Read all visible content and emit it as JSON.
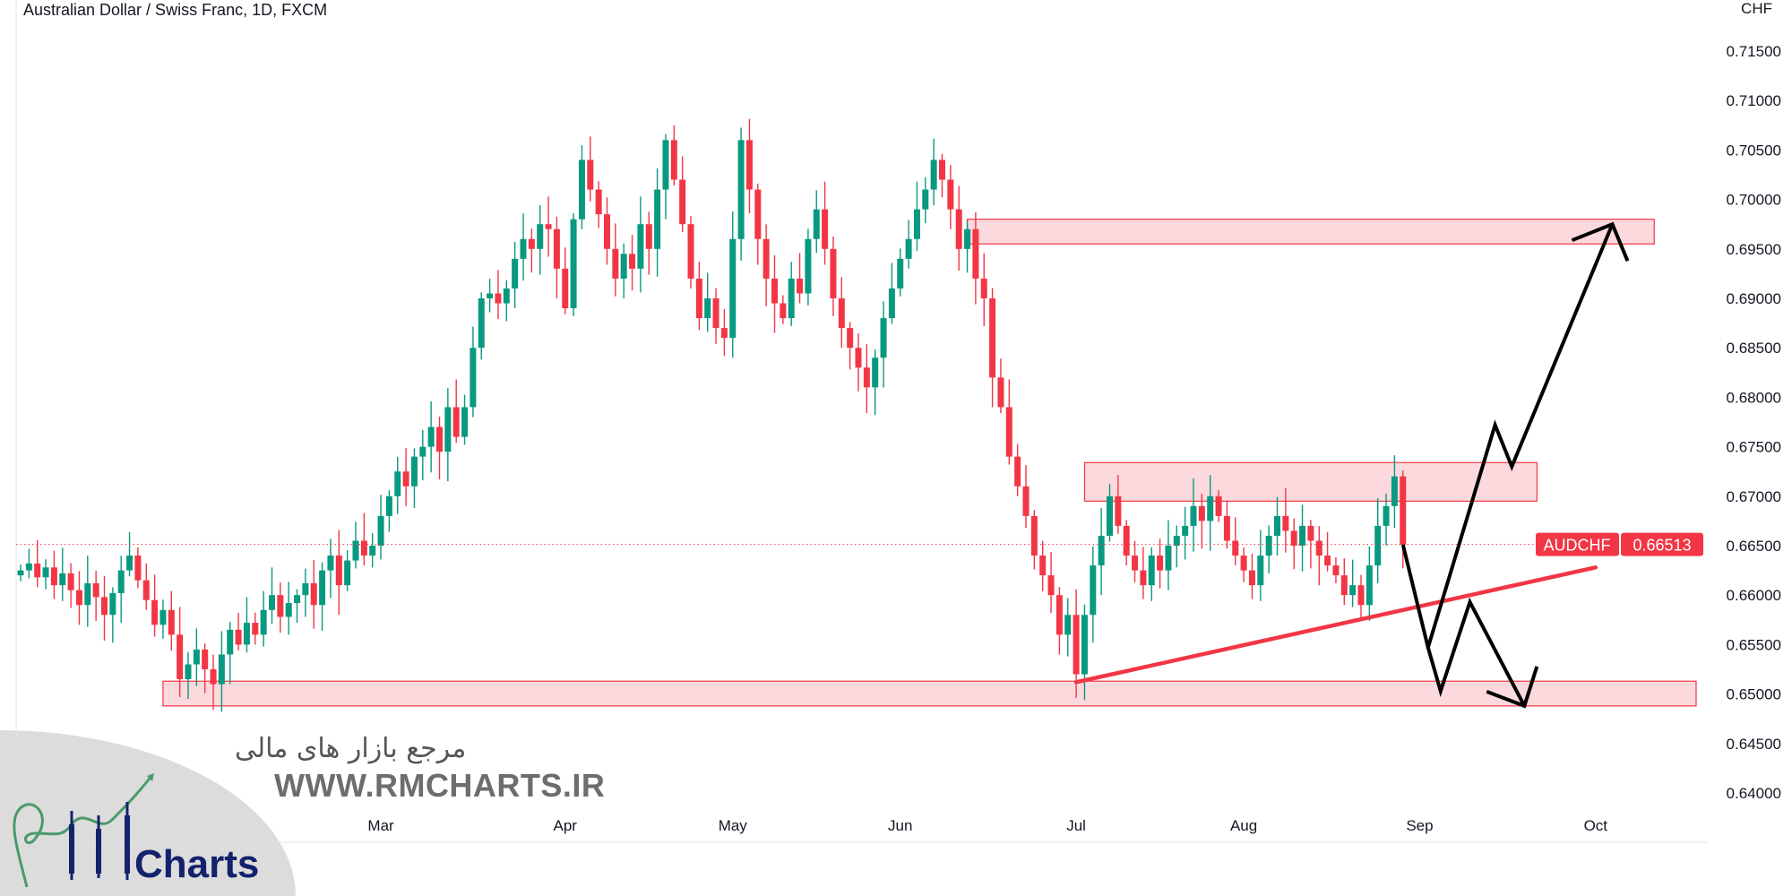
{
  "header": {
    "title": "Australian Dollar / Swiss Franc, 1D, FXCM",
    "currency": "CHF"
  },
  "watermark": {
    "persian": "مرجع بازار های مالی",
    "url": "WWW.RMCHARTS.IR",
    "brand": "Charts",
    "logo_text": "RM Charts"
  },
  "chart_data": {
    "type": "candlestick",
    "title": "Australian Dollar / Swiss Franc, 1D, FXCM",
    "symbol": "AUDCHF",
    "last_price": "0.66513",
    "ylabel": "CHF",
    "ylim": [
      0.6385,
      0.7165
    ],
    "yticks": [
      "0.71500",
      "0.71000",
      "0.70500",
      "0.70000",
      "0.69500",
      "0.69000",
      "0.68500",
      "0.68000",
      "0.67500",
      "0.67000",
      "0.66500",
      "0.66000",
      "0.65500",
      "0.65000",
      "0.64500",
      "0.64000"
    ],
    "xticks": [
      {
        "label": "Mar",
        "index": 43
      },
      {
        "label": "Apr",
        "index": 65
      },
      {
        "label": "May",
        "index": 85
      },
      {
        "label": "Jun",
        "index": 105
      },
      {
        "label": "Jul",
        "index": 126
      },
      {
        "label": "Aug",
        "index": 146
      },
      {
        "label": "Sep",
        "index": 167
      },
      {
        "label": "Oct",
        "index": 188
      }
    ],
    "first_open": 0.662,
    "closes": [
      0.6625,
      0.6632,
      0.6618,
      0.6628,
      0.661,
      0.6622,
      0.6605,
      0.659,
      0.6612,
      0.6598,
      0.658,
      0.6602,
      0.6625,
      0.664,
      0.6615,
      0.6595,
      0.657,
      0.6585,
      0.656,
      0.6515,
      0.653,
      0.6545,
      0.6525,
      0.651,
      0.654,
      0.6565,
      0.655,
      0.6572,
      0.656,
      0.6585,
      0.66,
      0.6578,
      0.6592,
      0.66,
      0.6612,
      0.659,
      0.6625,
      0.664,
      0.661,
      0.6635,
      0.6655,
      0.664,
      0.665,
      0.668,
      0.67,
      0.6725,
      0.671,
      0.674,
      0.675,
      0.677,
      0.6745,
      0.679,
      0.676,
      0.679,
      0.685,
      0.69,
      0.6905,
      0.6895,
      0.691,
      0.694,
      0.696,
      0.695,
      0.6975,
      0.697,
      0.693,
      0.689,
      0.698,
      0.704,
      0.701,
      0.6985,
      0.695,
      0.692,
      0.6945,
      0.693,
      0.6975,
      0.695,
      0.701,
      0.706,
      0.702,
      0.6975,
      0.692,
      0.688,
      0.69,
      0.687,
      0.686,
      0.696,
      0.706,
      0.701,
      0.696,
      0.692,
      0.6895,
      0.688,
      0.692,
      0.6905,
      0.696,
      0.699,
      0.695,
      0.69,
      0.687,
      0.685,
      0.683,
      0.681,
      0.684,
      0.688,
      0.691,
      0.694,
      0.696,
      0.699,
      0.701,
      0.704,
      0.702,
      0.699,
      0.695,
      0.697,
      0.692,
      0.69,
      0.682,
      0.679,
      0.674,
      0.671,
      0.668,
      0.664,
      0.662,
      0.66,
      0.656,
      0.658,
      0.652,
      0.658,
      0.663,
      0.666,
      0.67,
      0.667,
      0.664,
      0.6625,
      0.661,
      0.664,
      0.6625,
      0.665,
      0.666,
      0.667,
      0.669,
      0.6675,
      0.67,
      0.668,
      0.6655,
      0.664,
      0.6625,
      0.661,
      0.664,
      0.666,
      0.668,
      0.6665,
      0.665,
      0.667,
      0.6655,
      0.664,
      0.663,
      0.662,
      0.66,
      0.661,
      0.659,
      0.663,
      0.667,
      0.669,
      0.672,
      0.6651
    ],
    "colors": {
      "up": "#089981",
      "down": "#f23645",
      "zone_fill": "#fbd5d9",
      "zone_border": "#f23645",
      "trendline": "#f23645",
      "projection": "#000000"
    },
    "annotations": {
      "zones": [
        {
          "name": "resistance-zone-upper",
          "from_index": 113,
          "to_index": 195,
          "price_low": 0.6955,
          "price_high": 0.698
        },
        {
          "name": "resistance-zone-middle",
          "from_index": 127,
          "to_index": 181,
          "price_low": 0.6695,
          "price_high": 0.6734
        },
        {
          "name": "support-zone-lower",
          "from_index": 17,
          "to_index": 200,
          "price_low": 0.6488,
          "price_high": 0.6513
        }
      ],
      "trendline": {
        "from": [
          126,
          0.6512
        ],
        "to": [
          188,
          0.6628
        ]
      },
      "projection_main": [
        [
          165,
          0.6651
        ],
        [
          168,
          0.6547
        ],
        [
          169.5,
          0.6503
        ],
        [
          173,
          0.6593
        ],
        [
          179.5,
          0.6488
        ]
      ],
      "projection_alt": [
        [
          168,
          0.6547
        ],
        [
          176,
          0.6772
        ],
        [
          178,
          0.673
        ],
        [
          190,
          0.6975
        ]
      ]
    }
  }
}
